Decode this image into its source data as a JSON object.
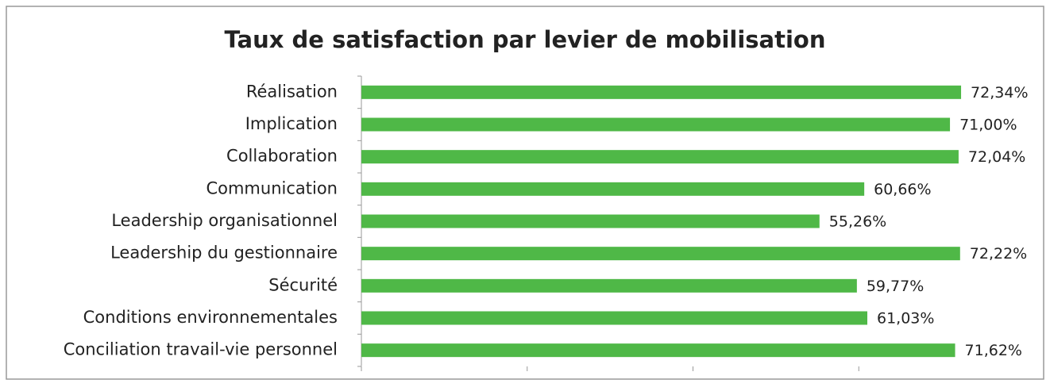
{
  "chart_data": {
    "type": "hbar",
    "title": "Taux de satisfaction par levier de mobilisation",
    "categories": [
      "Réalisation",
      "Implication",
      "Collaboration",
      "Communication",
      "Leadership organisationnel",
      "Leadership du gestionnaire",
      "Sécurité",
      "Conditions environnementales",
      "Conciliation travail-vie personnel"
    ],
    "values": [
      72.34,
      71.0,
      72.04,
      60.66,
      55.26,
      72.22,
      59.77,
      61.03,
      71.62
    ],
    "value_labels": [
      "72,34%",
      "71,00%",
      "72,04%",
      "60,66%",
      "55,26%",
      "72,22%",
      "59,77%",
      "61,03%",
      "71,62%"
    ],
    "color": "#4fb847",
    "xlim": [
      0,
      80
    ],
    "xticks": [
      0,
      20,
      40,
      60,
      80
    ]
  }
}
